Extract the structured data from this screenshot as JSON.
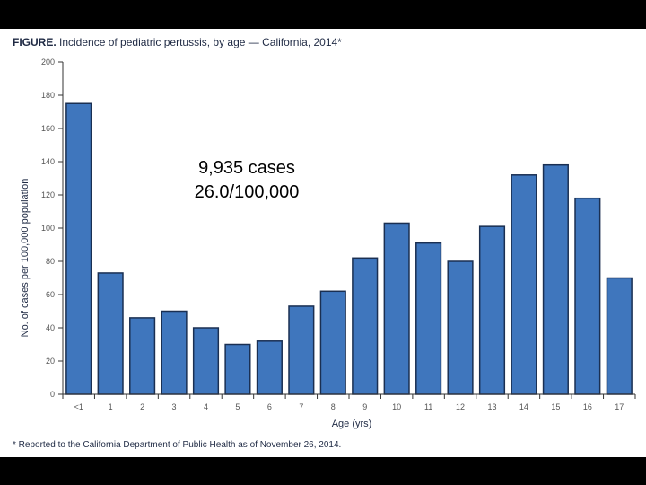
{
  "figure": {
    "title_prefix": "FIGURE.",
    "title_text": " Incidence of pediatric pertussis, by age — California, 2014*",
    "footnote": "* Reported to the California Department of Public Health as of November 26, 2014."
  },
  "callout": {
    "line1": "9,935 cases",
    "line2": "26.0/100,000"
  },
  "colors": {
    "bar_fill": "#3f76bd",
    "bar_stroke": "#1a2f52",
    "axis": "#333333"
  },
  "chart_data": {
    "type": "bar",
    "title": "Incidence of pediatric pertussis, by age — California, 2014*",
    "xlabel": "Age (yrs)",
    "ylabel": "No. of cases per 100,000 population",
    "categories": [
      "<1",
      "1",
      "2",
      "3",
      "4",
      "5",
      "6",
      "7",
      "8",
      "9",
      "10",
      "11",
      "12",
      "13",
      "14",
      "15",
      "16",
      "17"
    ],
    "values": [
      175,
      73,
      46,
      50,
      40,
      30,
      32,
      53,
      62,
      82,
      103,
      91,
      80,
      101,
      132,
      138,
      118,
      70
    ],
    "ylim": [
      0,
      200
    ],
    "yticks": [
      0,
      20,
      40,
      60,
      80,
      100,
      120,
      140,
      160,
      180,
      200
    ],
    "grid": false,
    "legend": "none"
  }
}
